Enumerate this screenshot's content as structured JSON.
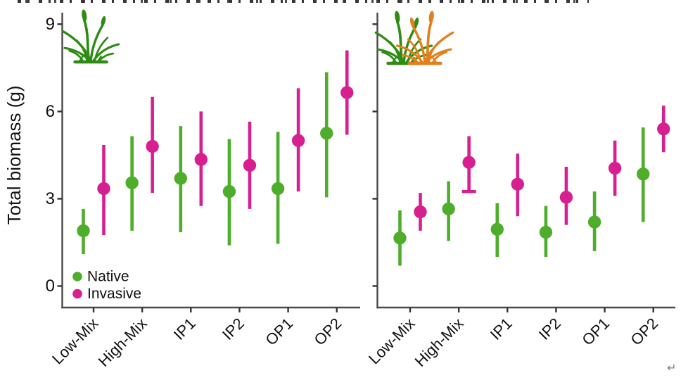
{
  "figure": {
    "return_mark": "↵"
  },
  "chart_data": {
    "type": "pointrange",
    "title": "",
    "ylabel": "Total biomass (g)",
    "xlabel": "",
    "yticks": [
      0,
      3,
      6,
      9
    ],
    "ylim": [
      -0.75,
      9.35
    ],
    "grid": "off",
    "categories": [
      "Low-Mix",
      "High-Mix",
      "IP1",
      "IP2",
      "OP1",
      "OP2"
    ],
    "legend": {
      "position": "inside bottom-left of left panel",
      "entries": [
        {
          "label": "Native",
          "color": "#4ead2b"
        },
        {
          "label": "Invasive",
          "color": "#d6208f"
        }
      ]
    },
    "panels": [
      {
        "name": "left-panel-native-grass",
        "icon": "green-grass-icon",
        "series": [
          {
            "name": "Native",
            "color": "#4ead2b",
            "mean": [
              1.9,
              3.55,
              3.7,
              3.25,
              3.35,
              5.25
            ],
            "lo": [
              1.1,
              1.9,
              1.85,
              1.4,
              1.45,
              3.05
            ],
            "hi": [
              2.65,
              5.15,
              5.5,
              5.05,
              5.3,
              7.35
            ],
            "lo_cap": [
              false,
              false,
              false,
              false,
              false,
              false
            ]
          },
          {
            "name": "Invasive",
            "color": "#d6208f",
            "mean": [
              3.35,
              4.8,
              4.35,
              4.15,
              5.0,
              6.65
            ],
            "lo": [
              1.75,
              3.2,
              2.75,
              2.65,
              3.25,
              5.2
            ],
            "hi": [
              4.85,
              6.5,
              6.0,
              5.65,
              6.8,
              8.1
            ],
            "lo_cap": [
              false,
              false,
              false,
              false,
              false,
              false
            ]
          }
        ]
      },
      {
        "name": "right-panel-native-and-invasive-grass",
        "icon": "green-and-orange-grass-icon",
        "series": [
          {
            "name": "Native",
            "color": "#4ead2b",
            "mean": [
              1.65,
              2.65,
              1.95,
              1.85,
              2.2,
              3.85
            ],
            "lo": [
              0.7,
              1.55,
              1.0,
              1.0,
              1.2,
              2.2
            ],
            "hi": [
              2.6,
              3.6,
              2.85,
              2.75,
              3.25,
              5.45
            ],
            "lo_cap": [
              false,
              false,
              false,
              false,
              false,
              false
            ]
          },
          {
            "name": "Invasive",
            "color": "#d6208f",
            "mean": [
              2.55,
              4.25,
              3.5,
              3.05,
              4.05,
              5.4
            ],
            "lo": [
              1.9,
              3.25,
              2.4,
              2.1,
              3.1,
              4.6
            ],
            "hi": [
              3.2,
              5.15,
              4.55,
              4.1,
              5.0,
              6.2
            ],
            "lo_cap": [
              false,
              true,
              false,
              false,
              false,
              false
            ]
          }
        ]
      }
    ],
    "icon_colors": {
      "native_grass": "#2e8c14",
      "invasive_grass": "#e2801c"
    },
    "axis_color": "#4a4a4a",
    "text_color": "#121212"
  }
}
